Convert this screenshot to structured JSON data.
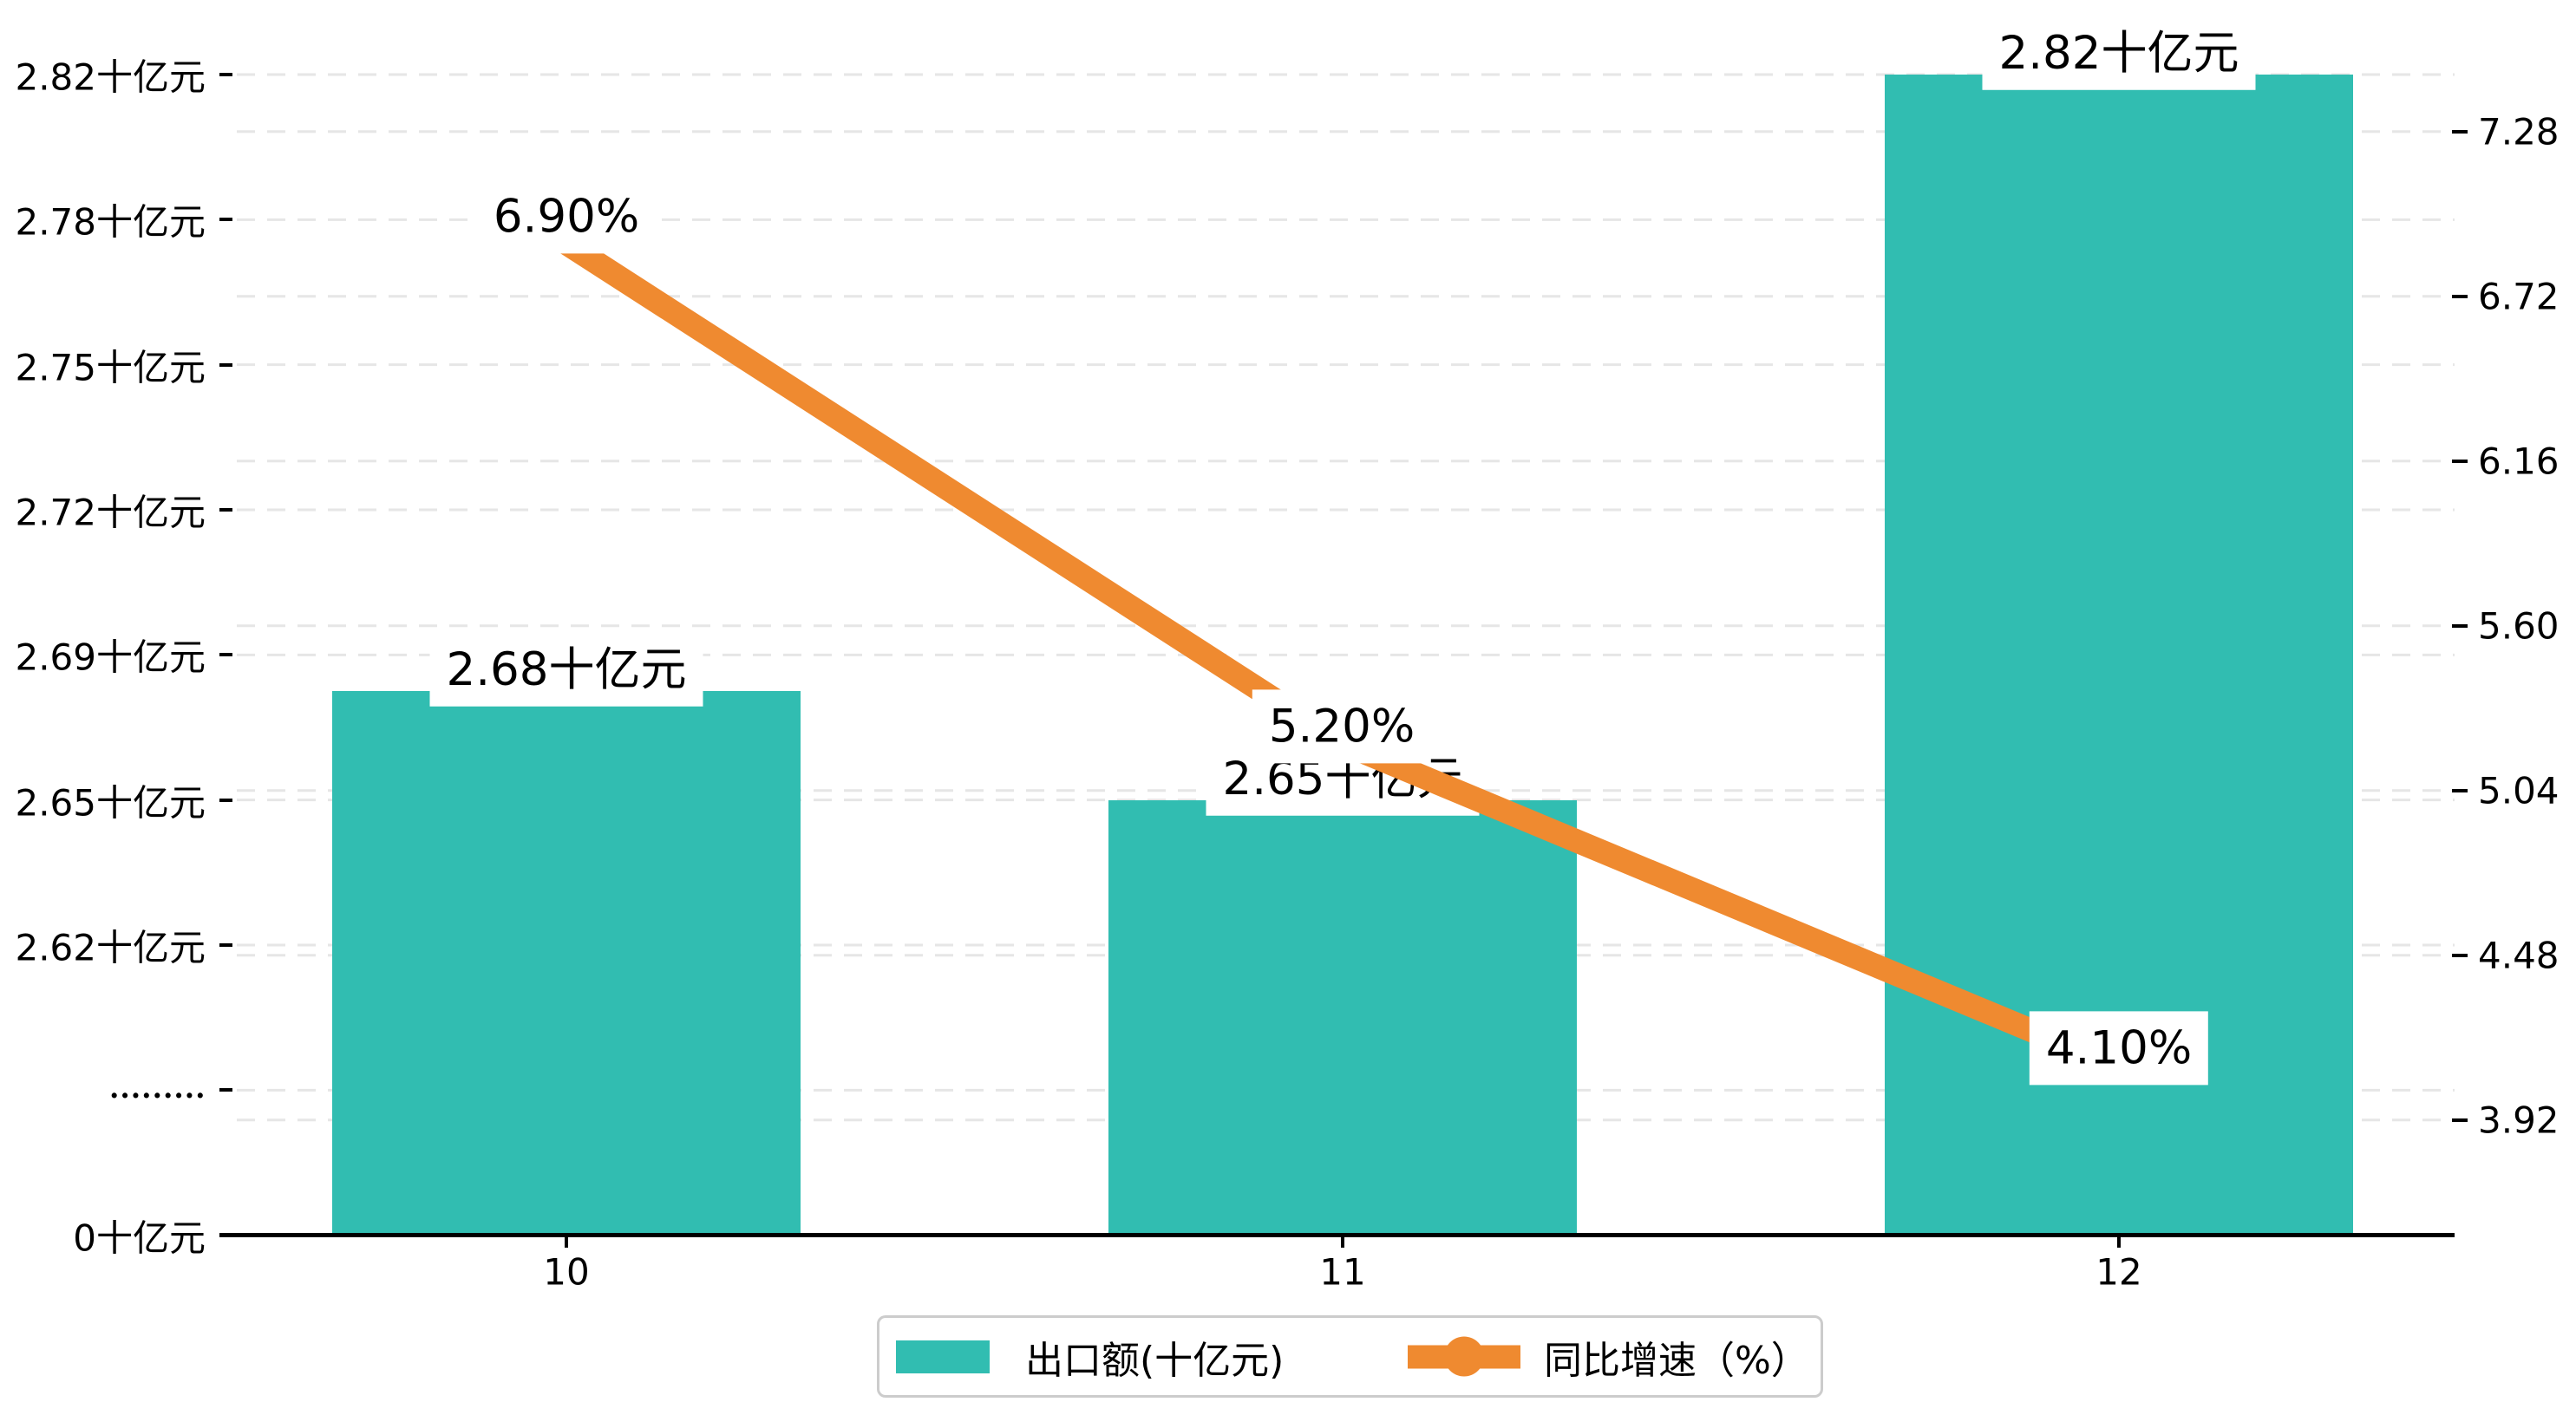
{
  "chart_data": {
    "type": "bar+line",
    "categories": [
      "10",
      "11",
      "12"
    ],
    "series": [
      {
        "name": "出口额(十亿元)",
        "type": "bar",
        "values": [
          2.68,
          2.65,
          2.82
        ],
        "data_labels": [
          "2.68十亿元",
          "2.65十亿元",
          "2.82十亿元"
        ],
        "color": "#31bdb1"
      },
      {
        "name": "同比增速（%）",
        "type": "line",
        "values": [
          6.9,
          5.2,
          4.1
        ],
        "data_labels": [
          "6.90%",
          "5.20%",
          "4.10%"
        ],
        "color": "#ef8a30"
      }
    ],
    "left_axis": {
      "tick_labels": [
        "2.82十亿元",
        "2.78十亿元",
        "2.75十亿元",
        "2.72十亿元",
        "2.69十亿元",
        "2.65十亿元",
        "2.62十亿元",
        "·········",
        "0十亿元"
      ],
      "tick_values": [
        2.82,
        2.78,
        2.75,
        2.72,
        2.69,
        2.65,
        2.62,
        null,
        0
      ],
      "unit": "十亿元",
      "broken_axis": true
    },
    "right_axis": {
      "tick_labels": [
        "7.28",
        "6.72",
        "6.16",
        "5.60",
        "5.04",
        "4.48",
        "3.92"
      ],
      "max": 7.28,
      "min": 3.92,
      "step": 0.56
    },
    "legend": {
      "items": [
        {
          "label": "出口额(十亿元)",
          "marker": "bar",
          "color": "#31bdb1"
        },
        {
          "label": "同比增速（%）",
          "marker": "line",
          "color": "#ef8a30"
        }
      ]
    },
    "grid": true,
    "legend_position": "bottom-center"
  }
}
